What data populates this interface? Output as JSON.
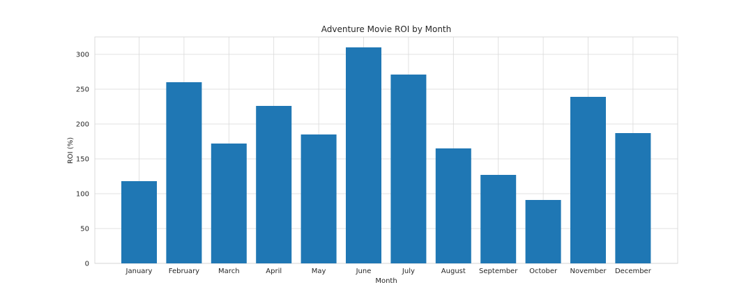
{
  "chart_data": {
    "type": "bar",
    "title": "Adventure Movie ROI by Month",
    "xlabel": "Month",
    "ylabel": "ROI (%)",
    "categories": [
      "January",
      "February",
      "March",
      "April",
      "May",
      "June",
      "July",
      "August",
      "September",
      "October",
      "November",
      "December"
    ],
    "values": [
      118,
      260,
      172,
      226,
      185,
      310,
      271,
      165,
      127,
      91,
      239,
      187
    ],
    "ylim": [
      0,
      325
    ],
    "yticks": [
      0,
      50,
      100,
      150,
      200,
      250,
      300
    ],
    "grid": true,
    "bar_color": "#1f77b4"
  }
}
